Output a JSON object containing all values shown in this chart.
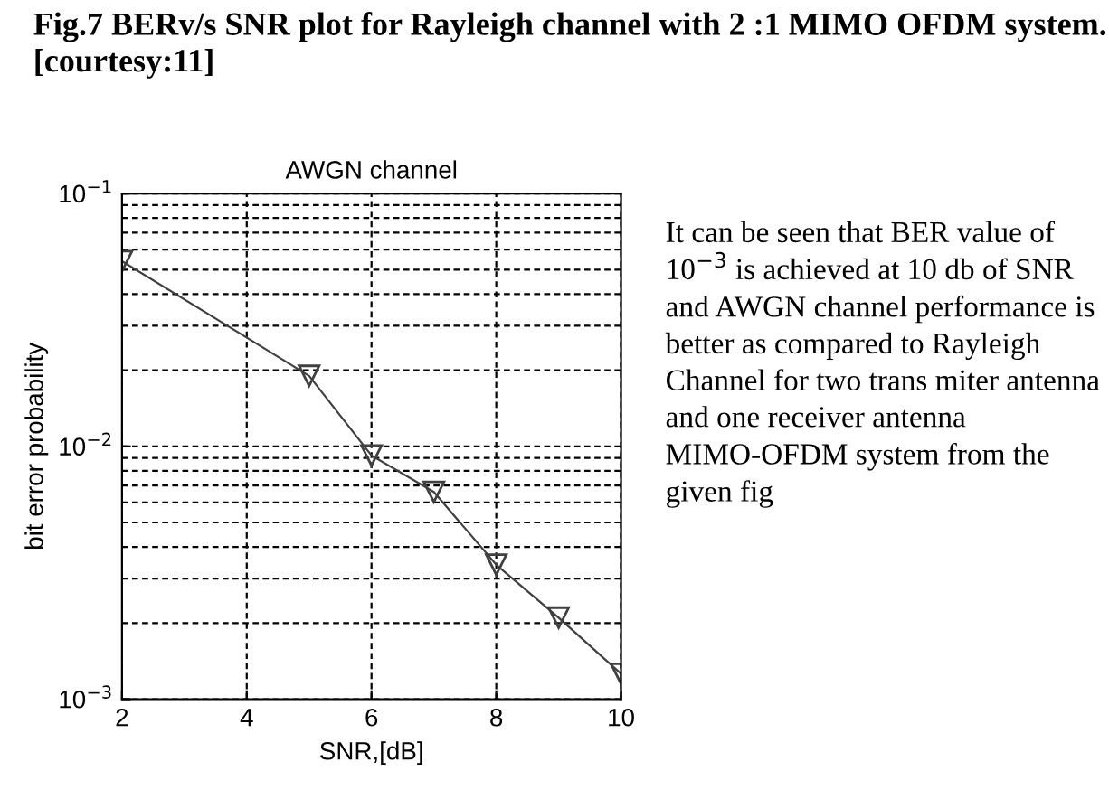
{
  "chart_data": {
    "type": "line",
    "title": "AWGN channel",
    "xlabel": "SNR,[dB]",
    "ylabel": "bit error probability",
    "x": [
      2,
      5,
      6,
      7,
      8,
      9,
      10
    ],
    "series": [
      {
        "color": "#404040",
        "values": [
          0.054,
          0.019,
          0.0092,
          0.0066,
          0.0034,
          0.0021,
          0.00126
        ]
      }
    ],
    "marker": "triangle",
    "line_style": "solid",
    "grid": true,
    "log": "y",
    "xlim": [
      2,
      10
    ],
    "xticks": [
      2,
      4,
      6,
      8,
      10
    ],
    "ylim": [
      0.001,
      0.1
    ],
    "yticks": [
      {
        "value": 0.001,
        "label": "10$^{−3}$"
      },
      {
        "value": 0.01,
        "label": "10$^{−2}$"
      },
      {
        "value": 0.1,
        "label": "10$^{−1}$"
      }
    ],
    "annotations": [
      "Fig.7 BERv/s SNR plot for Rayleigh channel with 2 :1 MIMO OFDM system. [courtesy:11]",
      "It can be seen that BER value of 10$^{−3}$ is achieved at 10 db of SNR and AWGN channel performance is better as compared to Rayleigh Channel for two trans miter antenna and one receiver antenna MIMO-OFDM system from the given fig"
    ]
  }
}
